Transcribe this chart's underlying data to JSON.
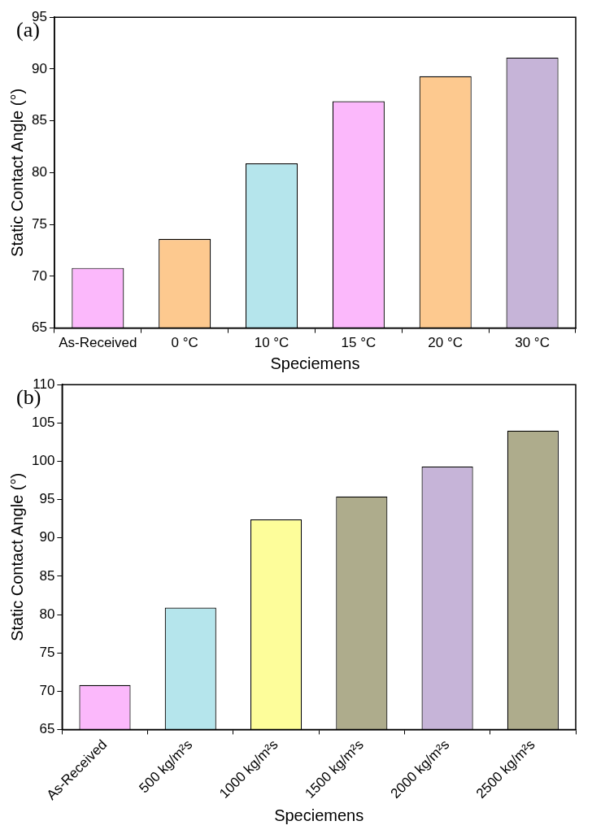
{
  "chart_data": [
    {
      "type": "bar",
      "title": "(a)",
      "xlabel": "Speciemens",
      "ylabel": "Static Contact Angle (°)",
      "categories": [
        "As-Received",
        "0 °C",
        "10 °C",
        "15 °C",
        "20 °C",
        "30 °C"
      ],
      "values": [
        70.8,
        73.6,
        80.9,
        86.9,
        89.3,
        91.1
      ],
      "colors": [
        "#fbb8fb",
        "#fdc98f",
        "#b5e5ec",
        "#fbb8fb",
        "#fdc98f",
        "#c6b4d8"
      ],
      "ylim": [
        65,
        95
      ],
      "yticks": [
        65,
        70,
        75,
        80,
        85,
        90,
        95
      ],
      "grid": false
    },
    {
      "type": "bar",
      "title": "(b)",
      "xlabel": "Speciemens",
      "ylabel": "Static Contact Angle (°)",
      "categories": [
        "As-Received",
        "500 kg/m²s",
        "1000 kg/m²s",
        "1500 kg/m²s",
        "2000 kg/m²s",
        "2500 kg/m²s"
      ],
      "values": [
        70.8,
        80.9,
        92.4,
        95.4,
        99.3,
        104.0
      ],
      "colors": [
        "#fbb8fb",
        "#b5e5ec",
        "#fdfd9a",
        "#aeac8c",
        "#c6b4d8",
        "#aeac8c"
      ],
      "ylim": [
        65,
        110
      ],
      "yticks": [
        65,
        70,
        75,
        80,
        85,
        90,
        95,
        100,
        105,
        110
      ],
      "grid": false
    }
  ]
}
